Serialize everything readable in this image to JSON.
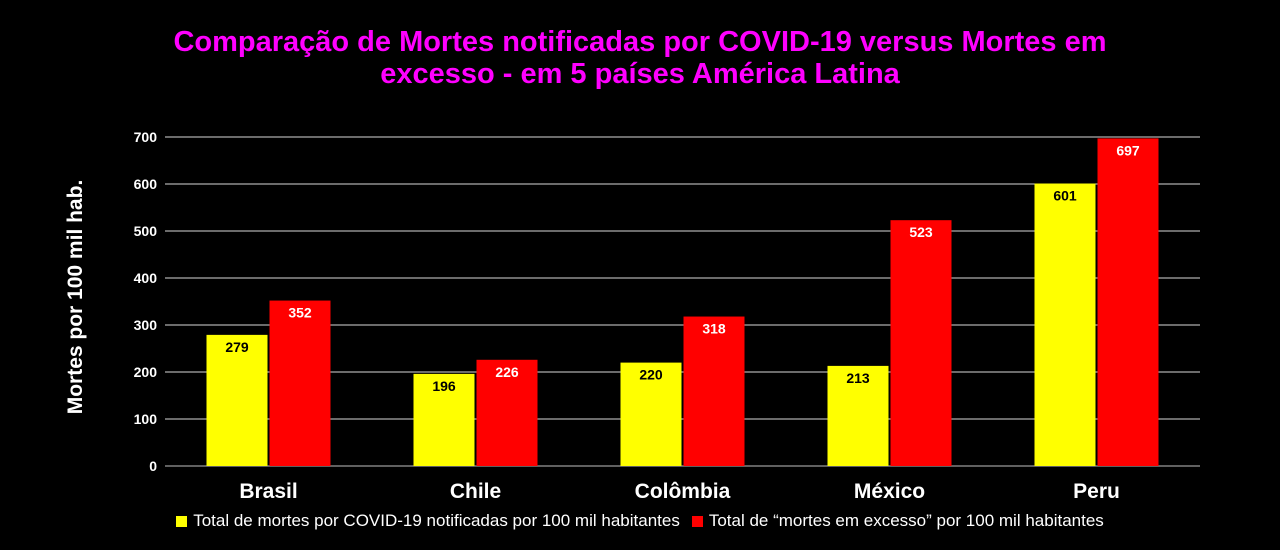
{
  "chart_data": {
    "type": "bar",
    "title": "Comparação de Mortes notificadas por COVID-19 versus Mortes em excesso - em 5 países América Latina",
    "title_lines": [
      "Comparação de Mortes notificadas por COVID-19 versus Mortes em",
      "excesso - em 5 países América Latina"
    ],
    "xlabel": "",
    "ylabel": "Mortes por 100 mil hab.",
    "categories": [
      "Brasil",
      "Chile",
      "Colômbia",
      "México",
      "Peru"
    ],
    "series": [
      {
        "name": "Total de mortes por COVID-19 notificadas por 100 mil habitantes",
        "color": "#ffff00",
        "label_color": "#000000",
        "values": [
          279,
          196,
          220,
          213,
          601
        ],
        "value_labels": [
          "279",
          "196",
          "220",
          "213",
          "601"
        ]
      },
      {
        "name": "Total de “mortes em excesso” por 100 mil habitantes",
        "color": "#ff0000",
        "label_color": "#ffffff",
        "values": [
          352,
          226,
          318,
          523,
          697
        ],
        "value_labels": [
          "352",
          "226",
          "318",
          "523",
          "697"
        ]
      }
    ],
    "ylim": [
      0,
      700
    ],
    "yticks": [
      "0",
      "100",
      "200",
      "300",
      "400",
      "500",
      "600",
      "700"
    ],
    "grid": true,
    "legend_position": "bottom",
    "title_color": "#ff00ff",
    "background": "#000000"
  }
}
